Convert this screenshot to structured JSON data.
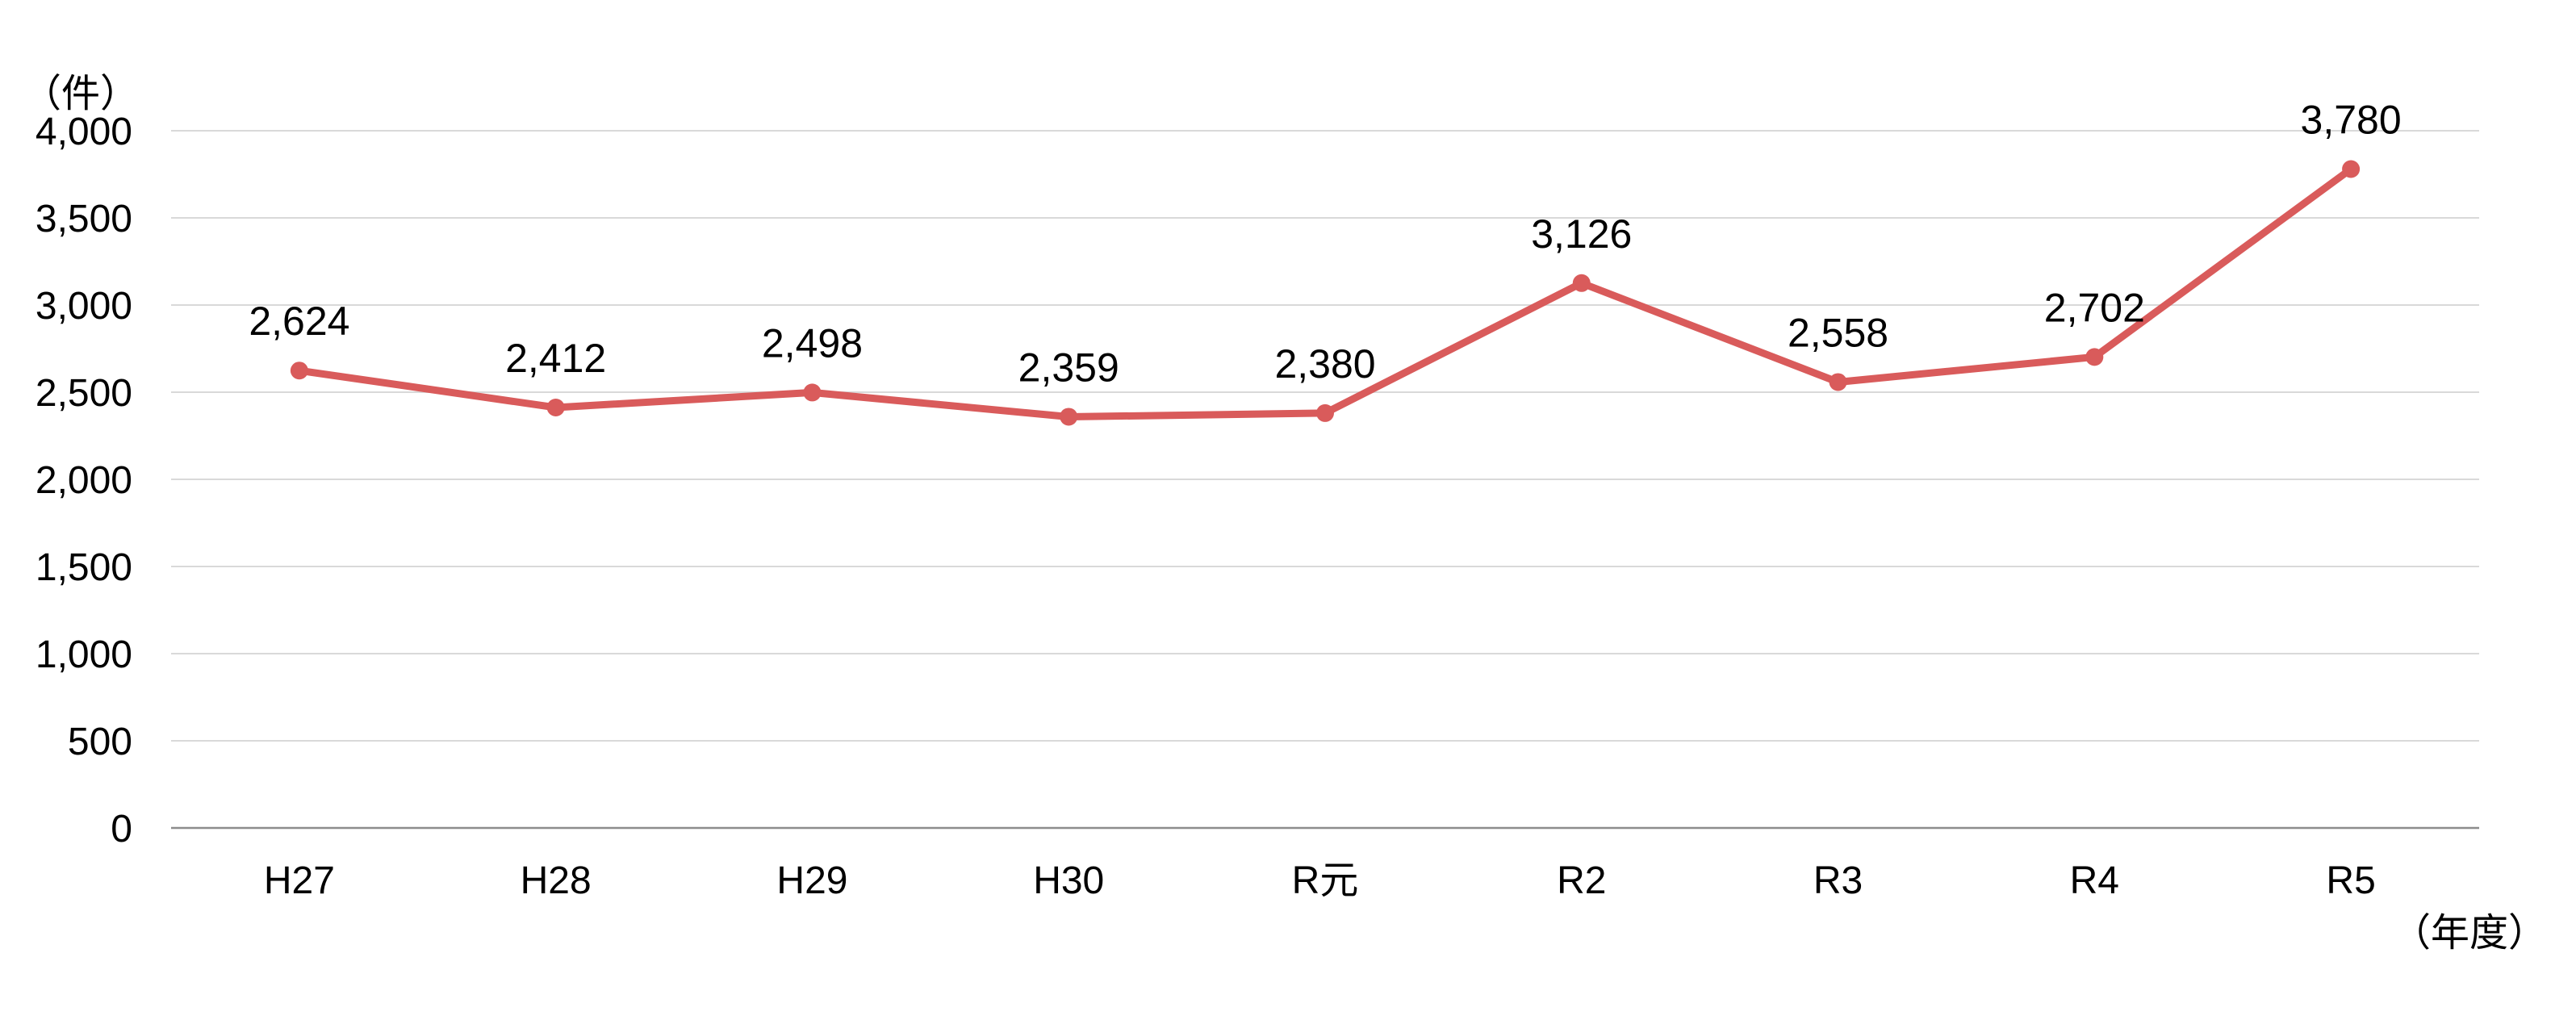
{
  "chart_data": {
    "type": "line",
    "categories": [
      "H27",
      "H28",
      "H29",
      "H30",
      "R元",
      "R2",
      "R3",
      "R4",
      "R5"
    ],
    "series": [
      {
        "values": [
          2624,
          2412,
          2498,
          2359,
          2380,
          3126,
          2558,
          2702,
          3780
        ],
        "labels": [
          "2,624",
          "2,412",
          "2,498",
          "2,359",
          "2,380",
          "3,126",
          "2,558",
          "2,702",
          "3,780"
        ],
        "color": "#d95b5b"
      }
    ],
    "y_unit": "（件）",
    "x_unit": "（年度）",
    "ylim": [
      0,
      4000
    ],
    "yticks": [
      0,
      500,
      1000,
      1500,
      2000,
      2500,
      3000,
      3500,
      4000
    ],
    "ytick_labels": [
      "0",
      "500",
      "1,000",
      "1,500",
      "2,000",
      "2,500",
      "3,000",
      "3,500",
      "4,000"
    ],
    "grid": true,
    "legend": "none"
  }
}
